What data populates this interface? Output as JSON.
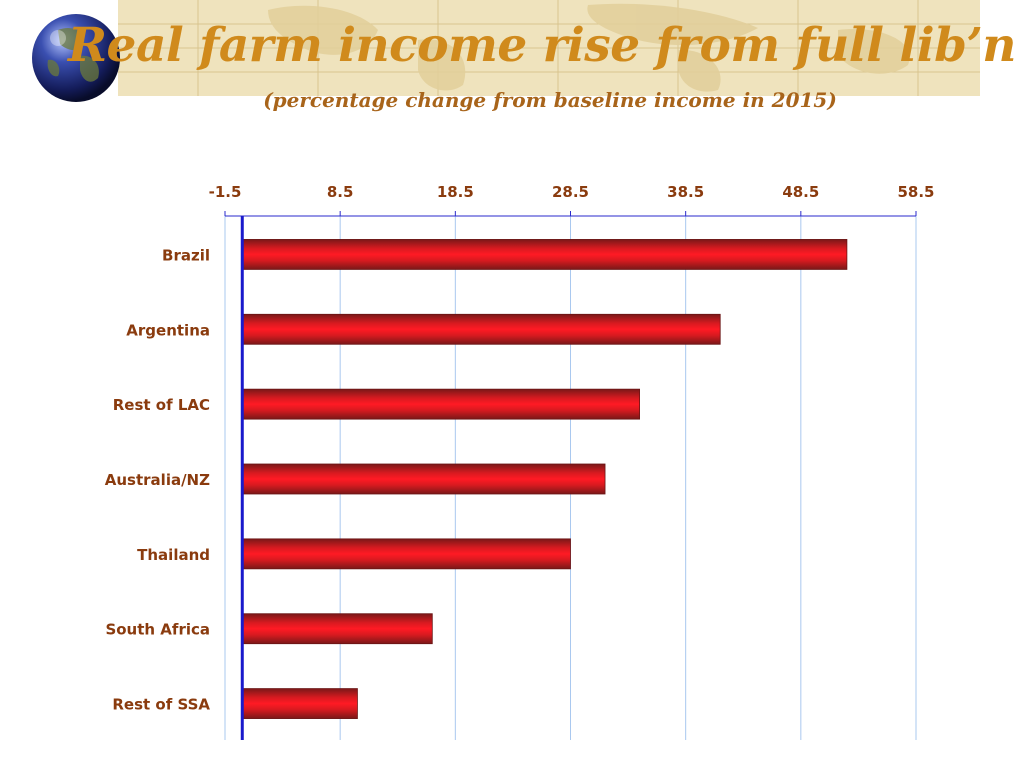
{
  "slide": {
    "title": "Real farm income rise from full lib’n",
    "subtitle": "(percentage change from baseline income in 2015)"
  },
  "colors": {
    "title": "#d08a1c",
    "subtitle": "#a8641a",
    "labels": "#8a3b0e",
    "bar": "#e8101a",
    "bar_dark": "#8a1a1a",
    "zero_axis": "#1a1acc",
    "grid": "#a9c8ef",
    "banner": "#efe3bd"
  },
  "icons": {
    "globe": "globe-icon"
  },
  "chart_data": {
    "type": "bar",
    "orientation": "horizontal",
    "title": "Real farm income rise from full lib’n",
    "subtitle": "(percentage change from baseline income in 2015)",
    "categories": [
      "Brazil",
      "Argentina",
      "Rest of LAC",
      "Australia/NZ",
      "Thailand",
      "South Africa",
      "Rest of SSA"
    ],
    "values": [
      52.5,
      41.5,
      34.5,
      31.5,
      28.5,
      16.5,
      10.0
    ],
    "xlim": [
      -1.5,
      58.5
    ],
    "xticks": [
      "-1.5",
      "8.5",
      "18.5",
      "28.5",
      "38.5",
      "48.5",
      "58.5"
    ],
    "xaxis_position": "top",
    "grid": true,
    "legend": "none"
  }
}
